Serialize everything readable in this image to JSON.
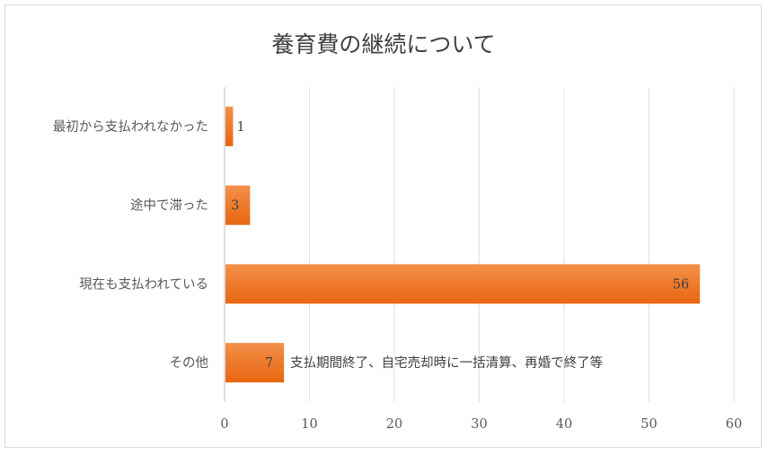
{
  "chart_data": {
    "type": "bar",
    "orientation": "horizontal",
    "title": "養育費の継続について",
    "categories": [
      "最初から支払われなかった",
      "途中で滞った",
      "現在も支払われている",
      "その他"
    ],
    "values": [
      1,
      3,
      56,
      7
    ],
    "data_labels": [
      "1",
      "3",
      "56",
      "7"
    ],
    "annotations": [
      "",
      "",
      "",
      "支払期間終了、自宅売却時に一括清算、再婚で終了等"
    ],
    "xlim": [
      0,
      60
    ],
    "xticks": [
      0,
      10,
      20,
      30,
      40,
      50,
      60
    ],
    "xlabel": "",
    "ylabel": "",
    "grid": true,
    "legend": "none",
    "bar_color_top": "#f4904a",
    "bar_color_bottom": "#e8650f"
  }
}
